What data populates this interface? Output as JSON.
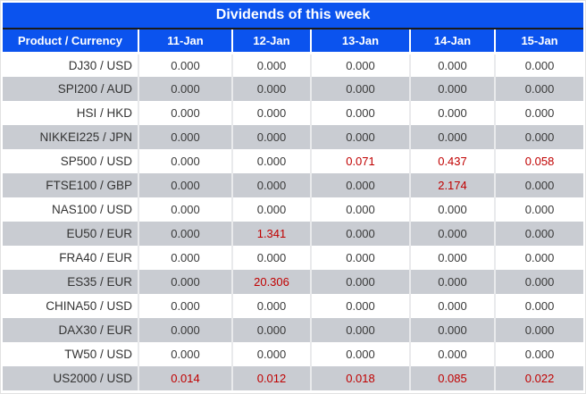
{
  "title": "Dividends of this week",
  "columns": [
    "Product / Currency",
    "11-Jan",
    "12-Jan",
    "13-Jan",
    "14-Jan",
    "15-Jan"
  ],
  "rows": [
    {
      "product": "DJ30 / USD",
      "values": [
        "0.000",
        "0.000",
        "0.000",
        "0.000",
        "0.000"
      ],
      "highlight": []
    },
    {
      "product": "SPI200 / AUD",
      "values": [
        "0.000",
        "0.000",
        "0.000",
        "0.000",
        "0.000"
      ],
      "highlight": []
    },
    {
      "product": "HSI / HKD",
      "values": [
        "0.000",
        "0.000",
        "0.000",
        "0.000",
        "0.000"
      ],
      "highlight": []
    },
    {
      "product": "NIKKEI225 / JPN",
      "values": [
        "0.000",
        "0.000",
        "0.000",
        "0.000",
        "0.000"
      ],
      "highlight": []
    },
    {
      "product": "SP500 / USD",
      "values": [
        "0.000",
        "0.000",
        "0.071",
        "0.437",
        "0.058"
      ],
      "highlight": [
        2,
        3,
        4
      ]
    },
    {
      "product": "FTSE100 / GBP",
      "values": [
        "0.000",
        "0.000",
        "0.000",
        "2.174",
        "0.000"
      ],
      "highlight": [
        3
      ]
    },
    {
      "product": "NAS100 / USD",
      "values": [
        "0.000",
        "0.000",
        "0.000",
        "0.000",
        "0.000"
      ],
      "highlight": []
    },
    {
      "product": "EU50 / EUR",
      "values": [
        "0.000",
        "1.341",
        "0.000",
        "0.000",
        "0.000"
      ],
      "highlight": [
        1
      ]
    },
    {
      "product": "FRA40 / EUR",
      "values": [
        "0.000",
        "0.000",
        "0.000",
        "0.000",
        "0.000"
      ],
      "highlight": []
    },
    {
      "product": "ES35 / EUR",
      "values": [
        "0.000",
        "20.306",
        "0.000",
        "0.000",
        "0.000"
      ],
      "highlight": [
        1
      ]
    },
    {
      "product": "CHINA50 / USD",
      "values": [
        "0.000",
        "0.000",
        "0.000",
        "0.000",
        "0.000"
      ],
      "highlight": []
    },
    {
      "product": "DAX30 / EUR",
      "values": [
        "0.000",
        "0.000",
        "0.000",
        "0.000",
        "0.000"
      ],
      "highlight": []
    },
    {
      "product": "TW50 / USD",
      "values": [
        "0.000",
        "0.000",
        "0.000",
        "0.000",
        "0.000"
      ],
      "highlight": []
    },
    {
      "product": "US2000 / USD",
      "values": [
        "0.014",
        "0.012",
        "0.018",
        "0.085",
        "0.022"
      ],
      "highlight": [
        0,
        1,
        2,
        3,
        4
      ]
    }
  ],
  "colors": {
    "header_blue": "#0b53ee",
    "alt_row_gray": "#c9ccd2",
    "highlight_red": "#c00000",
    "title_divider": "#1b1b1b",
    "grid_line": "#e9eaec"
  }
}
